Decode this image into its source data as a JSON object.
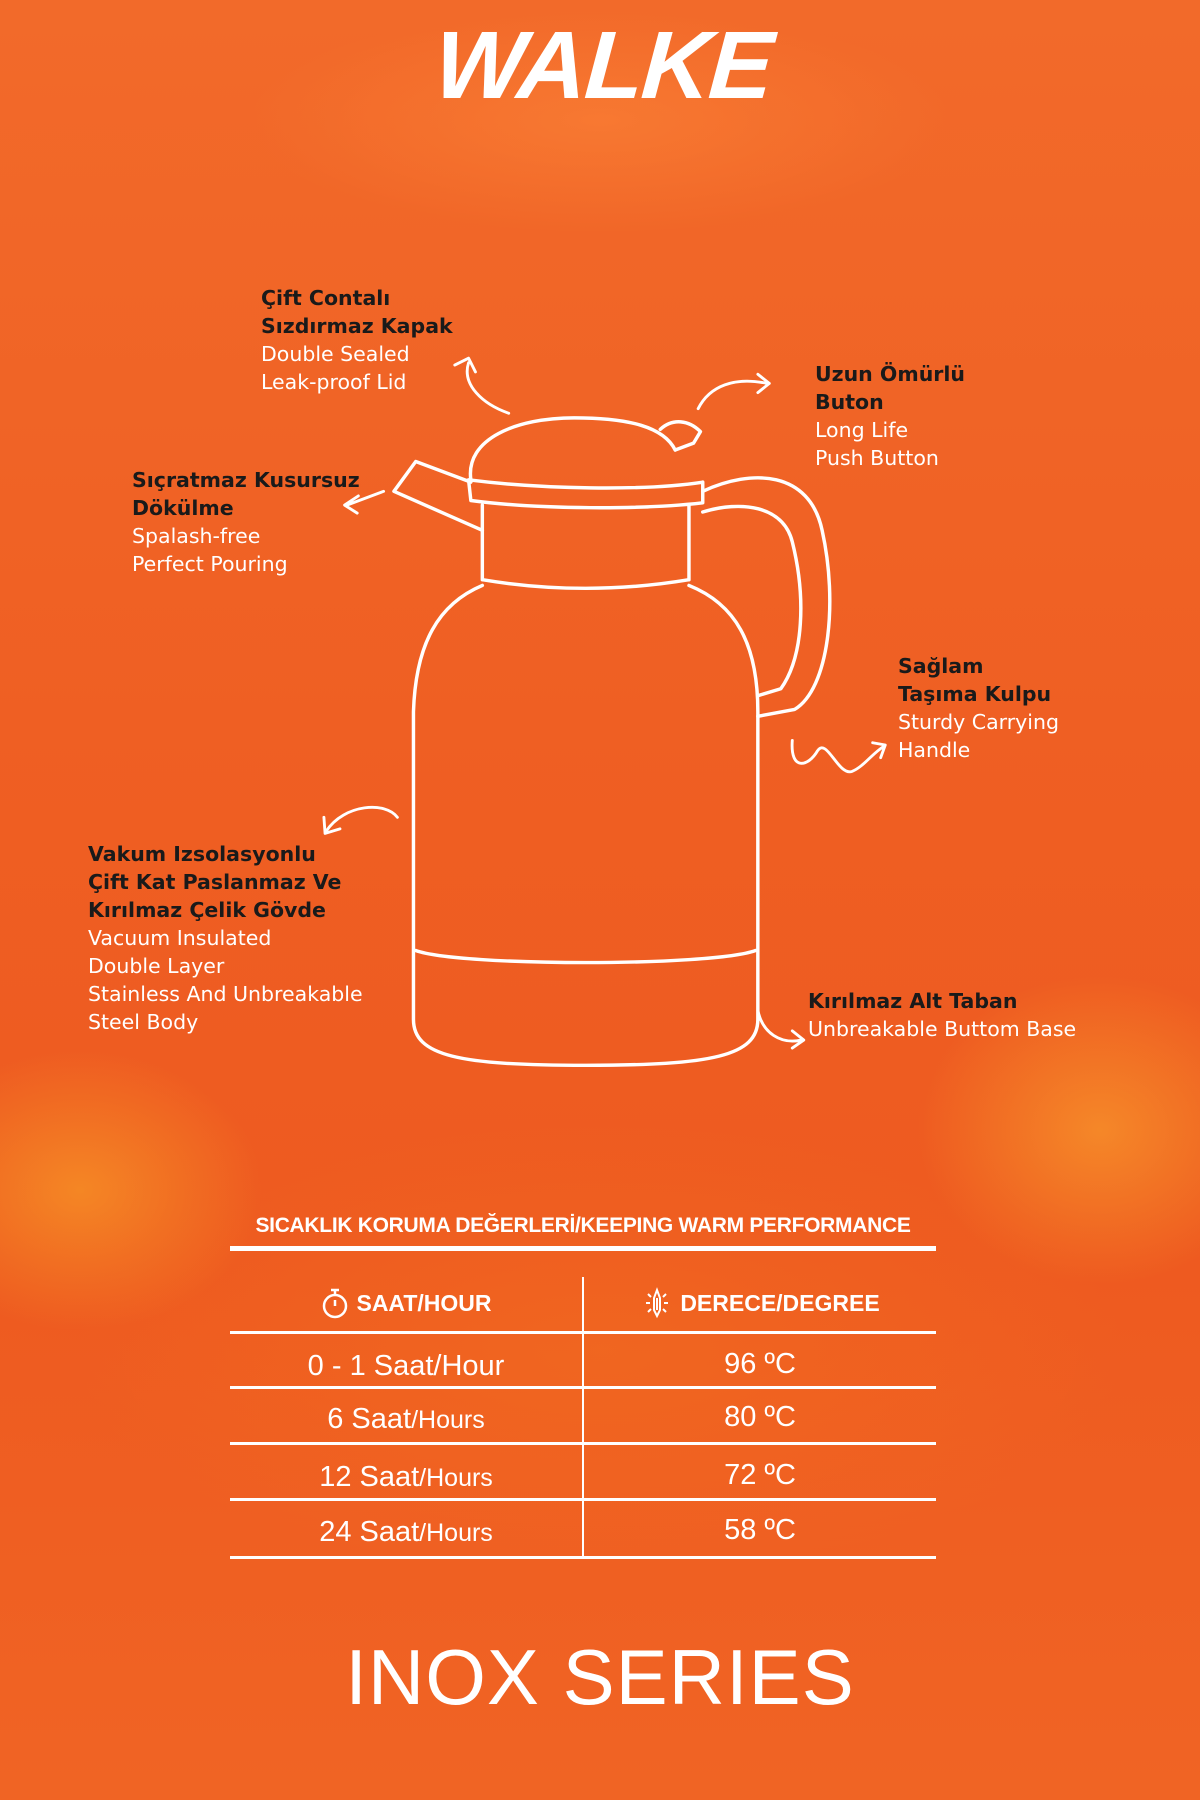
{
  "brand": {
    "logo_text": "WALKE"
  },
  "features": [
    {
      "tr": [
        "Çift Contalı",
        "Sızdırmaz Kapak"
      ],
      "en": [
        "Double Sealed",
        "Leak-proof Lid"
      ]
    },
    {
      "tr": [
        "Uzun Ömürlü",
        "Buton"
      ],
      "en": [
        "Long Life",
        "Push Button"
      ]
    },
    {
      "tr": [
        "Sıçratmaz Kusursuz",
        "Dökülme"
      ],
      "en": [
        "Spalash-free",
        "Perfect Pouring"
      ]
    },
    {
      "tr": [
        "Sağlam",
        "Taşıma Kulpu"
      ],
      "en": [
        "Sturdy Carrying",
        "Handle"
      ]
    },
    {
      "tr": [
        "Vakum Izsolasyonlu",
        "Çift Kat Paslanmaz Ve",
        "Kırılmaz Çelik Gövde"
      ],
      "en": [
        "Vacuum Insulated",
        "Double Layer",
        "Stainless And Unbreakable",
        "Steel Body"
      ]
    },
    {
      "tr": [
        "Kırılmaz Alt Taban"
      ],
      "en": [
        "Unbreakable Buttom Base"
      ]
    }
  ],
  "table": {
    "title": "SICAKLIK KORUMA DEĞERLERİ/KEEPING WARM PERFORMANCE",
    "headers": {
      "hour": "SAAT/HOUR",
      "degree": "DERECE/DEGREE"
    },
    "rows": [
      {
        "hour_tr": "0 - 1 Saat/Hour",
        "hour_en": "",
        "degree": "96 ºC"
      },
      {
        "hour_tr": "6 Saat",
        "hour_en": "/Hours",
        "degree": "80 ºC"
      },
      {
        "hour_tr": "12 Saat",
        "hour_en": "/Hours",
        "degree": "72 ºC"
      },
      {
        "hour_tr": "24 Saat",
        "hour_en": "/Hours",
        "degree": "58 ºC"
      }
    ]
  },
  "series_name": "INOX SERIES"
}
